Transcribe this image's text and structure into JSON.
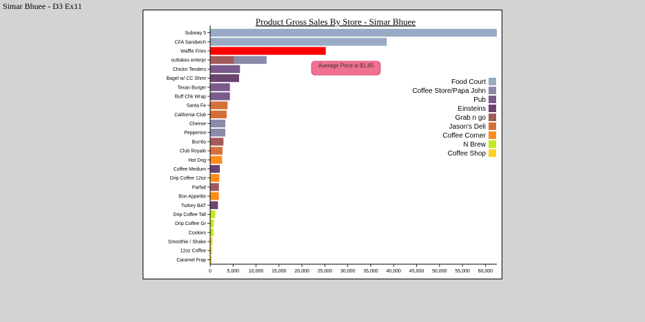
{
  "page": {
    "title": "Simar Bhuee - D3 Ex11"
  },
  "chart_data": {
    "type": "bar",
    "orientation": "horizontal",
    "stacked": true,
    "title": "Product Gross Sales By Store - Simar Bhuee",
    "annotation": "Average Price is $1.65",
    "xlim": [
      0,
      62500
    ],
    "xticks": [
      0,
      5000,
      10000,
      15000,
      20000,
      25000,
      30000,
      35000,
      40000,
      45000,
      50000,
      55000,
      60000
    ],
    "xtick_labels": [
      "0",
      "5,000",
      "10,000",
      "15,000",
      "20,000",
      "25,000",
      "30,000",
      "35,000",
      "40,000",
      "45,000",
      "50,000",
      "55,000",
      "60,000"
    ],
    "legend_position": "right",
    "stores": [
      {
        "name": "Food Court",
        "color": "#98aac4"
      },
      {
        "name": "Coffee Store/Papa John",
        "color": "#8b8aaa"
      },
      {
        "name": "Pub",
        "color": "#7a5b8c"
      },
      {
        "name": "Einsteins",
        "color": "#6b4470"
      },
      {
        "name": "Grab n go",
        "color": "#a35a5a"
      },
      {
        "name": "Jason's Deli",
        "color": "#d4713a"
      },
      {
        "name": "Coffee Corner",
        "color": "#ff8c1a"
      },
      {
        "name": "N Brew",
        "color": "#c6e81e"
      },
      {
        "name": "Coffee Shop",
        "color": "#ffd21f"
      }
    ],
    "categories": [
      {
        "label": "Subway 5",
        "segments": [
          {
            "store": "Food Court",
            "value": 62500
          }
        ]
      },
      {
        "label": "CFA Sandwich",
        "segments": [
          {
            "store": "Food Court",
            "value": 38500
          }
        ]
      },
      {
        "label": "Waffle Fries",
        "segments": [
          {
            "store": "Food Court",
            "value": 25200,
            "color": "#ff0000"
          }
        ]
      },
      {
        "label": "outtakes enterpr",
        "segments": [
          {
            "store": "Grab n go",
            "value": 5200
          },
          {
            "store": "Coffee Store/Papa John",
            "value": 7100
          }
        ]
      },
      {
        "label": "Chickn Tenders",
        "segments": [
          {
            "store": "Pub",
            "value": 6500
          }
        ]
      },
      {
        "label": "Bagel w/ CC Shmr",
        "segments": [
          {
            "store": "Einsteins",
            "value": 6300
          }
        ]
      },
      {
        "label": "Texan Burger",
        "segments": [
          {
            "store": "Pub",
            "value": 4300
          }
        ]
      },
      {
        "label": "Buff Chk Wrap",
        "segments": [
          {
            "store": "Pub",
            "value": 4300
          }
        ]
      },
      {
        "label": "Santa Fe",
        "segments": [
          {
            "store": "Jason's Deli",
            "value": 3800
          }
        ]
      },
      {
        "label": "California Club",
        "segments": [
          {
            "store": "Jason's Deli",
            "value": 3600
          }
        ]
      },
      {
        "label": "Cheese",
        "segments": [
          {
            "store": "Coffee Store/Papa John",
            "value": 3300
          }
        ]
      },
      {
        "label": "Pepperoni",
        "segments": [
          {
            "store": "Coffee Store/Papa John",
            "value": 3300
          }
        ]
      },
      {
        "label": "Burrito",
        "segments": [
          {
            "store": "Grab n go",
            "value": 2900
          }
        ]
      },
      {
        "label": "Club Royale",
        "segments": [
          {
            "store": "Jason's Deli",
            "value": 2700
          }
        ]
      },
      {
        "label": "Hot Dog",
        "segments": [
          {
            "store": "Coffee Corner",
            "value": 2600
          }
        ]
      },
      {
        "label": "Coffee Medium",
        "segments": [
          {
            "store": "Einsteins",
            "value": 2100
          }
        ]
      },
      {
        "label": "Drip Coffee 12oz",
        "segments": [
          {
            "store": "Coffee Corner",
            "value": 2000
          }
        ]
      },
      {
        "label": "Parfait",
        "segments": [
          {
            "store": "Grab n go",
            "value": 1900
          }
        ]
      },
      {
        "label": "Bon Appetite",
        "segments": [
          {
            "store": "Coffee Corner",
            "value": 1900
          }
        ]
      },
      {
        "label": "Turkey BAT",
        "segments": [
          {
            "store": "Einsteins",
            "value": 1700
          }
        ]
      },
      {
        "label": "Drip Coffee Tall",
        "segments": [
          {
            "store": "N Brew",
            "value": 1100
          }
        ]
      },
      {
        "label": "Drip Coffee Gr",
        "segments": [
          {
            "store": "N Brew",
            "value": 800
          }
        ]
      },
      {
        "label": "Cookies",
        "segments": [
          {
            "store": "N Brew",
            "value": 750
          }
        ]
      },
      {
        "label": "Smoothie / Shake",
        "segments": [
          {
            "store": "Coffee Shop",
            "value": 500
          }
        ]
      },
      {
        "label": "12oz Coffee",
        "segments": [
          {
            "store": "Coffee Shop",
            "value": 400
          }
        ]
      },
      {
        "label": "Caramel Frap",
        "segments": [
          {
            "store": "Coffee Shop",
            "value": 350
          }
        ]
      }
    ],
    "annotation_style": {
      "fill": "#f07090",
      "stroke": "#e05080"
    }
  }
}
